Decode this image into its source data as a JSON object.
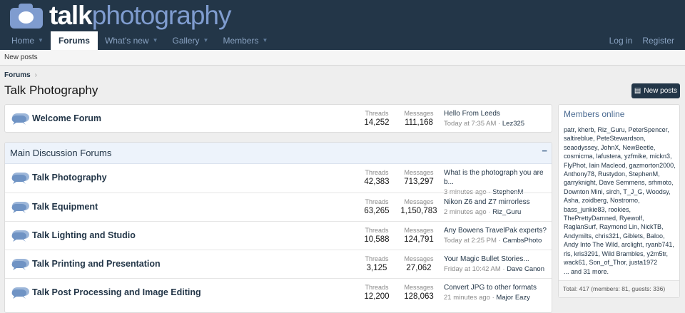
{
  "brand": {
    "part1": "talk",
    "part2": "photography"
  },
  "nav": {
    "items": [
      {
        "label": "Home",
        "dropdown": true
      },
      {
        "label": "Forums",
        "active": true
      },
      {
        "label": "What's new",
        "dropdown": true
      },
      {
        "label": "Gallery",
        "dropdown": true
      },
      {
        "label": "Members",
        "dropdown": true
      }
    ],
    "login": "Log in",
    "register": "Register"
  },
  "subnav": {
    "new_posts": "New posts"
  },
  "breadcrumb": {
    "item": "Forums",
    "sep": "›"
  },
  "page": {
    "title": "Talk Photography",
    "new_posts_button": "New posts"
  },
  "welcome": {
    "name": "Welcome Forum",
    "threads_label": "Threads",
    "threads": "14,252",
    "messages_label": "Messages",
    "messages": "111,168",
    "latest_title": "Hello From Leeds",
    "latest_time": "Today at 7:35 AM",
    "latest_user": "Lez325"
  },
  "category": {
    "title": "Main Discussion Forums",
    "collapse": "−",
    "forums": [
      {
        "name": "Talk Photography",
        "threads": "42,383",
        "messages": "713,297",
        "latest_title": "What is the photograph you are b...",
        "latest_time": "3 minutes ago",
        "latest_user": "StephenM"
      },
      {
        "name": "Talk Equipment",
        "threads": "63,265",
        "messages": "1,150,783",
        "latest_title": "Nikon Z6 and Z7 mirrorless",
        "latest_time": "2 minutes ago",
        "latest_user": "Riz_Guru"
      },
      {
        "name": "Talk Lighting and Studio",
        "threads": "10,588",
        "messages": "124,791",
        "latest_title": "Any Bowens TravelPak experts?",
        "latest_time": "Today at 2:25 PM",
        "latest_user": "CambsPhoto"
      },
      {
        "name": "Talk Printing and Presentation",
        "threads": "3,125",
        "messages": "27,062",
        "latest_title": "Your Magic Bullet Stories...",
        "latest_time": "Friday at 10:42 AM",
        "latest_user": "Dave Canon"
      },
      {
        "name": "Talk Post Processing and Image Editing",
        "threads": "12,200",
        "messages": "128,063",
        "latest_title": "Convert JPG to other formats",
        "latest_time": "21 minutes ago",
        "latest_user": "Major Eazy"
      }
    ],
    "threads_label": "Threads",
    "messages_label": "Messages"
  },
  "members_online": {
    "title": "Members online",
    "list": "patr, kherb, Riz_Guru, PeterSpencer, saltireblue, PeteStewardson, seaodyssey, JohnX, NewBeetle, cosmicma, lafustera, yzfmike, mickn3, FlyPhot, Iain Macleod, gazmorton2000, Anthony78, Rustydon, StephenM, garryknight, Dave Semmens, srhmoto, Downton Mini, sirch, T_J_G, Woodsy, Asha, zoidberg, Nostromo, bass_junkie83, rookies, ThePrettyDamned, Ryewolf, RaglanSurf, Raymond Lin, NickTB, Andymilts, chris321, Giblets, Baloo, Andy Into The Wild, arclight, ryanb741, rls, kris3291, Wild Brambles, y2m5tr, wack61, Son_of_Thor, justa1972",
    "more": "... and 31 more.",
    "total": "Total: 417 (members: 81, guests: 336)"
  },
  "colors": {
    "header": "#233648",
    "accent": "#7f9ccf",
    "link": "#233648"
  }
}
